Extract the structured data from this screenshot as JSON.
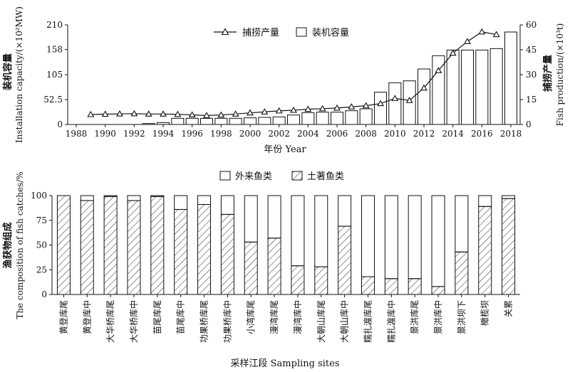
{
  "chart_data": [
    {
      "type": "bar",
      "x_label": "年份 Year",
      "y_label_left": "Installation capacity/(×10²MW)",
      "y_label_left_cn": "装机容量",
      "y_label_right": "Fish production/(×10³t)",
      "y_label_right_cn": "捕捞产量",
      "x_range": [
        1988,
        2018
      ],
      "x_ticks": [
        "1988",
        "1990",
        "1992",
        "1994",
        "1996",
        "1998",
        "2000",
        "2002",
        "2004",
        "2006",
        "2008",
        "2010",
        "2012",
        "2014",
        "2016",
        "2018"
      ],
      "y_left_ticks": [
        "0",
        "52.5",
        "105",
        "158",
        "210"
      ],
      "y_left_range": [
        0,
        210
      ],
      "y_right_ticks": [
        "0",
        "15",
        "30",
        "45",
        "60"
      ],
      "y_right_range": [
        0,
        60
      ],
      "legend_position": "top-center",
      "series": [
        {
          "name": "捕捞产量",
          "kind": "line",
          "axis": "right",
          "x": [
            1989,
            1990,
            1991,
            1992,
            1993,
            1994,
            1995,
            1996,
            1997,
            1998,
            1999,
            2000,
            2001,
            2002,
            2003,
            2004,
            2005,
            2006,
            2007,
            2008,
            2009,
            2010,
            2011,
            2012,
            2013,
            2014,
            2015,
            2016,
            2017
          ],
          "values": [
            6,
            6.2,
            6.4,
            6.5,
            6.3,
            6.3,
            6.1,
            5.8,
            5.4,
            5.7,
            6.3,
            7,
            7.6,
            8.2,
            8.6,
            9.2,
            9.5,
            9.9,
            10.6,
            11.3,
            12.6,
            15.7,
            14.5,
            22,
            32.5,
            43,
            50,
            55.8,
            54.2
          ]
        },
        {
          "name": "装机容量",
          "kind": "bar",
          "axis": "left",
          "x": [
            1993,
            1994,
            1995,
            1996,
            1997,
            1998,
            1999,
            2000,
            2001,
            2002,
            2003,
            2004,
            2005,
            2006,
            2007,
            2008,
            2009,
            2010,
            2011,
            2012,
            2013,
            2014,
            2015,
            2016,
            2017,
            2018
          ],
          "values": [
            2,
            4,
            13,
            13,
            13,
            13,
            13,
            14,
            15,
            16,
            20,
            25,
            26,
            26,
            29,
            33,
            68,
            88,
            92,
            117,
            145,
            157,
            157,
            157,
            160,
            195
          ]
        }
      ]
    },
    {
      "type": "bar",
      "stacked": true,
      "x_label": "采样江段 Sampling sites",
      "y_label": "The composition of fish catches/%",
      "y_label_cn": "渔获物组成",
      "y_range": [
        0,
        100
      ],
      "y_ticks": [
        "0",
        "25",
        "50",
        "75",
        "100"
      ],
      "legend_position": "top-center",
      "categories": [
        "黄登库尾",
        "黄登库中",
        "大华桥库尾",
        "大华桥库中",
        "苗尾库尾",
        "苗尾库中",
        "功果桥库尾",
        "功果桥库中",
        "小湾库尾",
        "漫湾库尾",
        "漫湾库中",
        "大朝山库尾",
        "大朝山库中",
        "糯扎渡库尾",
        "糯扎渡库中",
        "景洪库尾",
        "景洪库中",
        "景洪坝下",
        "橄榄坝",
        "关累"
      ],
      "series": [
        {
          "name": "外来鱼类",
          "values": [
            0,
            5,
            1,
            5,
            1,
            14,
            9,
            19,
            47,
            43,
            71,
            72,
            31,
            82,
            84,
            84,
            92,
            57,
            11,
            3
          ]
        },
        {
          "name": "土著鱼类",
          "values": [
            100,
            95,
            99,
            95,
            99,
            86,
            91,
            81,
            53,
            57,
            29,
            28,
            69,
            18,
            16,
            16,
            8,
            43,
            89,
            97
          ]
        }
      ]
    }
  ]
}
